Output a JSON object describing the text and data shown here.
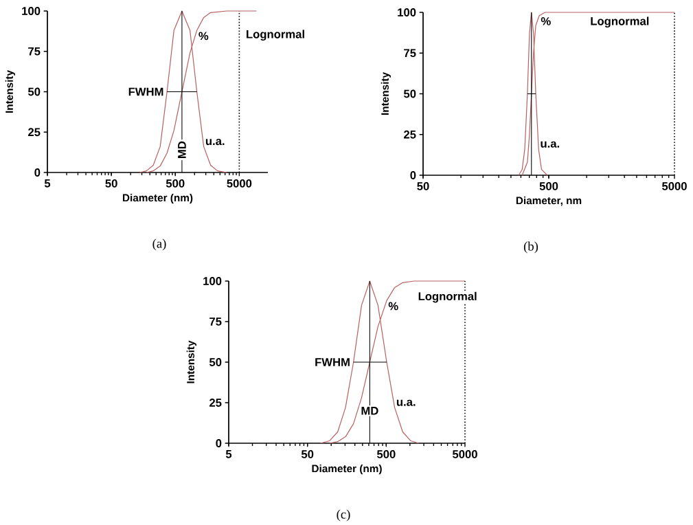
{
  "chart_data": [
    {
      "type": "line",
      "title": "(a)",
      "xlabel": "Diameter (nm)",
      "ylabel": "Intensity",
      "log": "x",
      "xlim": [
        5,
        14000
      ],
      "ylim": [
        0,
        100
      ],
      "xticks": [
        5,
        50,
        500,
        5000
      ],
      "yticks": [
        0,
        25,
        50,
        75,
        100
      ],
      "marker": "none",
      "series": [
        {
          "name": "u.a.",
          "color": "#b86060",
          "x": [
            140,
            177,
            226,
            290,
            371,
            476,
            635,
            848,
            1086,
            1391,
            1782,
            2282,
            3176
          ],
          "values": [
            0,
            1,
            4.5,
            16,
            50,
            88,
            100,
            88,
            50,
            16,
            4.5,
            1,
            0
          ]
        },
        {
          "name": "%",
          "color": "#b86060",
          "x": [
            177,
            226,
            290,
            371,
            476,
            635,
            848,
            1086,
            1391,
            1782,
            3176,
            9290
          ],
          "values": [
            0,
            1,
            4,
            12,
            26,
            50,
            74,
            88,
            96,
            99,
            100,
            100
          ]
        },
        {
          "name": "FWHM",
          "color": "#000000",
          "x": [
            371,
            1086
          ],
          "values": [
            50,
            50
          ]
        },
        {
          "name": "MD",
          "color": "#000000",
          "x": [
            635,
            635
          ],
          "values": [
            0,
            100
          ]
        }
      ],
      "ref_lines": [
        {
          "axis": "x",
          "value": 5000,
          "label": "Lognormal",
          "line_style": "dotted",
          "color": "#000000"
        }
      ]
    },
    {
      "type": "line",
      "title": "(b)",
      "xlabel": "Diameter, nm",
      "ylabel": "Intensity",
      "log": "x",
      "xlim": [
        50,
        5000
      ],
      "ylim": [
        0,
        100
      ],
      "xticks": [
        50,
        500,
        5000
      ],
      "yticks": [
        0,
        25,
        50,
        75,
        100
      ],
      "marker": "none",
      "series": [
        {
          "name": "u.a.",
          "color": "#b86060",
          "x": [
            288,
            307,
            322,
            338,
            351,
            364,
            378,
            394,
            415,
            438,
            487
          ],
          "values": [
            0,
            3.5,
            16,
            50,
            87,
            100,
            87,
            50,
            16,
            3.5,
            0
          ]
        },
        {
          "name": "%",
          "color": "#b86060",
          "x": [
            307,
            338,
            351,
            364,
            378,
            394,
            420,
            467,
            5000
          ],
          "values": [
            0,
            8,
            25,
            50,
            75,
            92,
            98,
            100,
            100
          ]
        },
        {
          "color": "#000000",
          "x": [
            338,
            394
          ],
          "values": [
            50,
            50
          ]
        },
        {
          "color": "#000000",
          "x": [
            364,
            364
          ],
          "values": [
            0,
            100
          ]
        }
      ],
      "ref_lines": [
        {
          "axis": "x",
          "value": 5000,
          "label": "Lognormal",
          "line_style": "dotted",
          "color": "#000000"
        }
      ]
    },
    {
      "type": "line",
      "title": "(c)",
      "xlabel": "Diameter (nm)",
      "ylabel": "Intensity",
      "log": "x",
      "xlim": [
        5,
        5000
      ],
      "ylim": [
        0,
        100
      ],
      "xticks": [
        5,
        50,
        500,
        5000
      ],
      "yticks": [
        0,
        25,
        50,
        75,
        100
      ],
      "marker": "none",
      "series": [
        {
          "name": "u.a.",
          "color": "#b86060",
          "x": [
            73,
            95.5,
            121,
            152,
            192,
            243,
            309,
            393,
            507,
            640,
            809,
            1021,
            1290
          ],
          "values": [
            0,
            1.5,
            7,
            22,
            50,
            85,
            100,
            85,
            50,
            22,
            7,
            1.5,
            0
          ]
        },
        {
          "name": "%",
          "color": "#b86060",
          "x": [
            95.5,
            121,
            152,
            192,
            243,
            309,
            393,
            507,
            640,
            809,
            1130,
            5000
          ],
          "values": [
            0,
            1,
            4,
            12,
            28,
            50,
            72,
            88,
            96,
            99,
            100,
            100
          ]
        },
        {
          "name": "FWHM",
          "color": "#000000",
          "x": [
            192,
            507
          ],
          "values": [
            50,
            50
          ]
        },
        {
          "name": "MD",
          "color": "#000000",
          "x": [
            309,
            309
          ],
          "values": [
            0,
            100
          ]
        }
      ],
      "ref_lines": [
        {
          "axis": "x",
          "value": 5000,
          "label": "Lognormal",
          "line_style": "dotted",
          "color": "#000000"
        }
      ]
    }
  ]
}
